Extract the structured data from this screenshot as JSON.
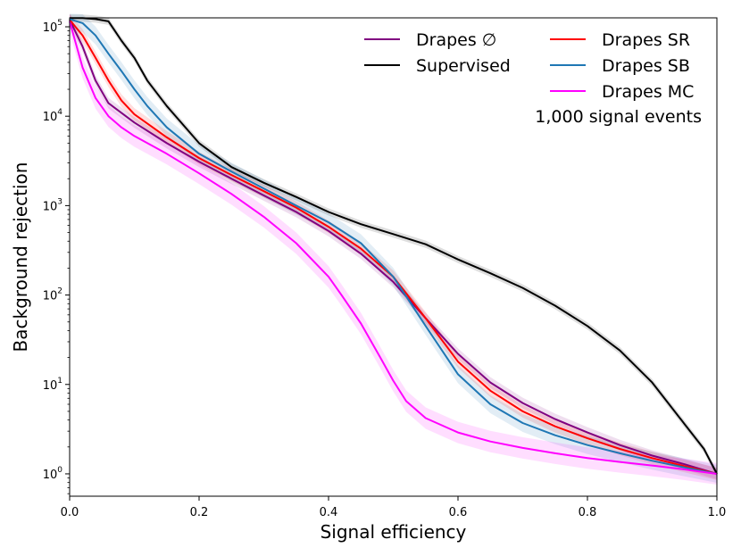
{
  "chart_data": {
    "type": "line",
    "xlabel": "Signal efficiency",
    "ylabel": "Background rejection",
    "xlim": [
      0.0,
      1.0
    ],
    "ylim_log10": [
      -0.25,
      5.1
    ],
    "y_scale": "log",
    "x_ticks": [
      "0.0",
      "0.2",
      "0.4",
      "0.6",
      "0.8",
      "1.0"
    ],
    "x_tick_values": [
      0.0,
      0.2,
      0.4,
      0.6,
      0.8,
      1.0
    ],
    "y_ticks": [
      {
        "base": "10",
        "exp": "0",
        "log10": 0
      },
      {
        "base": "10",
        "exp": "1",
        "log10": 1
      },
      {
        "base": "10",
        "exp": "2",
        "log10": 2
      },
      {
        "base": "10",
        "exp": "3",
        "log10": 3
      },
      {
        "base": "10",
        "exp": "4",
        "log10": 4
      },
      {
        "base": "10",
        "exp": "5",
        "log10": 5
      }
    ],
    "annotation": "1,000 signal events",
    "legend_position": "top-right",
    "series": [
      {
        "name": "Drapes ∅",
        "color": "#800080",
        "band": 0.06,
        "x": [
          0.0,
          0.02,
          0.04,
          0.06,
          0.1,
          0.15,
          0.2,
          0.25,
          0.3,
          0.35,
          0.4,
          0.45,
          0.5,
          0.55,
          0.6,
          0.65,
          0.7,
          0.75,
          0.8,
          0.85,
          0.9,
          0.95,
          1.0
        ],
        "y": [
          120000,
          60000,
          25000,
          14000,
          8500,
          5000,
          3100,
          2000,
          1300,
          850,
          520,
          290,
          140,
          55,
          22,
          10.5,
          6.2,
          4.1,
          2.9,
          2.1,
          1.6,
          1.28,
          1.0
        ]
      },
      {
        "name": "Supervised",
        "color": "#000000",
        "band": 0.04,
        "x": [
          0.0,
          0.02,
          0.04,
          0.06,
          0.08,
          0.1,
          0.12,
          0.15,
          0.2,
          0.25,
          0.3,
          0.35,
          0.4,
          0.45,
          0.5,
          0.55,
          0.6,
          0.65,
          0.7,
          0.75,
          0.8,
          0.85,
          0.9,
          0.95,
          0.98,
          1.0
        ],
        "y": [
          125000,
          125000,
          122000,
          115000,
          70000,
          45000,
          25000,
          13000,
          5000,
          2700,
          1800,
          1250,
          850,
          620,
          480,
          370,
          250,
          175,
          120,
          76,
          45,
          24,
          10.5,
          3.6,
          1.9,
          1.0
        ]
      },
      {
        "name": "Drapes SR",
        "color": "#ff0000",
        "band": 0.07,
        "x": [
          0.0,
          0.02,
          0.04,
          0.06,
          0.08,
          0.1,
          0.15,
          0.2,
          0.25,
          0.3,
          0.35,
          0.4,
          0.45,
          0.5,
          0.55,
          0.6,
          0.65,
          0.7,
          0.75,
          0.8,
          0.85,
          0.9,
          0.95,
          1.0
        ],
        "y": [
          120000,
          80000,
          45000,
          25000,
          15000,
          10500,
          5800,
          3400,
          2200,
          1450,
          950,
          580,
          330,
          160,
          55,
          18,
          8.5,
          5.0,
          3.4,
          2.5,
          1.9,
          1.5,
          1.22,
          1.0
        ]
      },
      {
        "name": "Drapes SB",
        "color": "#1f77b4",
        "band": 0.1,
        "x": [
          0.0,
          0.02,
          0.04,
          0.06,
          0.08,
          0.1,
          0.12,
          0.15,
          0.2,
          0.25,
          0.3,
          0.35,
          0.4,
          0.45,
          0.5,
          0.55,
          0.6,
          0.65,
          0.7,
          0.75,
          0.8,
          0.85,
          0.9,
          0.95,
          1.0
        ],
        "y": [
          122000,
          110000,
          80000,
          50000,
          32000,
          20000,
          13000,
          7500,
          3800,
          2400,
          1550,
          1000,
          650,
          380,
          160,
          45,
          13,
          6,
          3.7,
          2.7,
          2.1,
          1.7,
          1.4,
          1.18,
          1.0
        ]
      },
      {
        "name": "Drapes MC",
        "color": "#ff00ff",
        "band": 0.12,
        "x": [
          0.0,
          0.02,
          0.04,
          0.06,
          0.08,
          0.1,
          0.15,
          0.2,
          0.25,
          0.3,
          0.35,
          0.4,
          0.42,
          0.45,
          0.48,
          0.5,
          0.52,
          0.55,
          0.6,
          0.65,
          0.7,
          0.75,
          0.8,
          0.85,
          0.9,
          0.95,
          1.0
        ],
        "y": [
          115000,
          35000,
          16000,
          10000,
          7500,
          6000,
          3800,
          2300,
          1350,
          750,
          380,
          160,
          100,
          48,
          20,
          11,
          6.5,
          4.2,
          2.9,
          2.3,
          1.95,
          1.7,
          1.5,
          1.36,
          1.24,
          1.12,
          1.0
        ]
      }
    ]
  }
}
